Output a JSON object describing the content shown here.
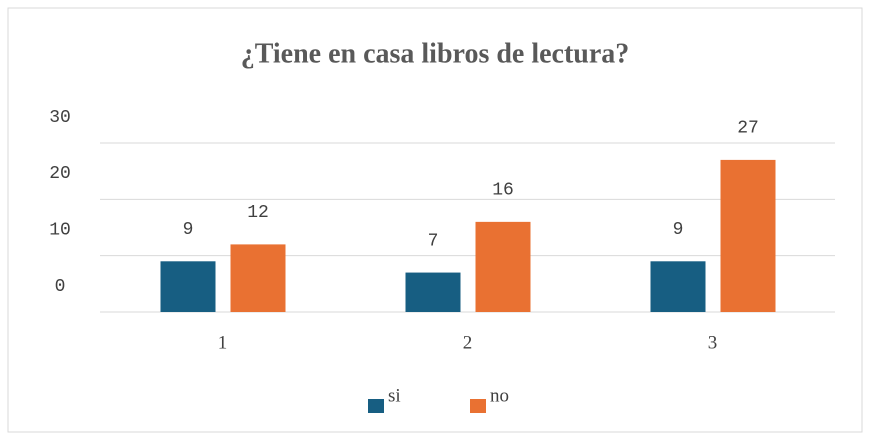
{
  "chart_data": {
    "type": "bar",
    "title": "¿Tiene en casa libros de lectura?",
    "categories": [
      "1",
      "2",
      "3"
    ],
    "series": [
      {
        "name": "si",
        "color": "#175e82",
        "values": [
          9,
          7,
          9
        ]
      },
      {
        "name": "no",
        "color": "#e97132",
        "values": [
          12,
          16,
          27
        ]
      }
    ],
    "ylim": [
      0,
      30
    ],
    "yticks": [
      0,
      10,
      20,
      30
    ],
    "grid": true,
    "legend": "bottom"
  }
}
